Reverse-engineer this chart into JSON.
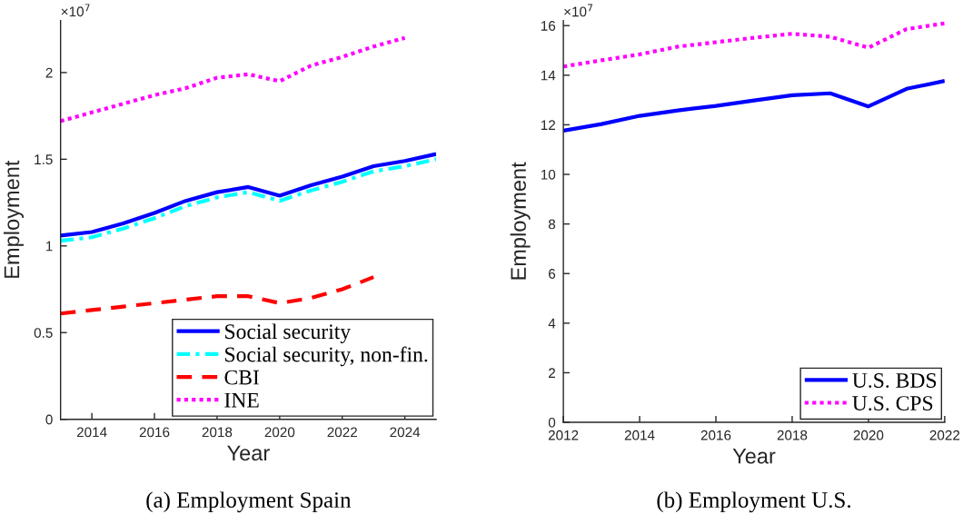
{
  "chart_data": [
    {
      "type": "line",
      "title": "(a) Employment Spain",
      "xlabel": "Year",
      "ylabel": "Employment",
      "annotations": [
        "×10$^{7}$"
      ],
      "x": [
        2013,
        2014,
        2015,
        2016,
        2017,
        2018,
        2019,
        2020,
        2021,
        2022,
        2023,
        2024,
        2025
      ],
      "xlim": [
        2013,
        2025
      ],
      "xticks": [
        2014,
        2016,
        2018,
        2020,
        2022,
        2024
      ],
      "ylim": [
        0,
        2.3
      ],
      "yticks": [
        0,
        0.5,
        1,
        1.5,
        2
      ],
      "legend": "bottom right",
      "series": [
        {
          "name": "Social security",
          "color": "#0000ff",
          "line_style": "solid",
          "values": [
            1.06,
            1.08,
            1.13,
            1.19,
            1.26,
            1.31,
            1.34,
            1.29,
            1.35,
            1.4,
            1.46,
            1.49,
            1.53
          ]
        },
        {
          "name": "Social security, non-fin.",
          "color": "#00ffff",
          "line_style": "dashdot",
          "values": [
            1.03,
            1.05,
            1.1,
            1.16,
            1.23,
            1.28,
            1.31,
            1.26,
            1.32,
            1.37,
            1.43,
            1.46,
            1.5
          ]
        },
        {
          "name": "CBI",
          "color": "#ff0000",
          "line_style": "dashed",
          "values": [
            0.61,
            0.63,
            0.65,
            0.67,
            0.69,
            0.71,
            0.71,
            0.67,
            0.7,
            0.75,
            0.82,
            null,
            null
          ]
        },
        {
          "name": "INE",
          "color": "#ff00ff",
          "line_style": "dotted",
          "values": [
            1.72,
            1.77,
            1.82,
            1.87,
            1.91,
            1.97,
            1.99,
            1.95,
            2.04,
            2.09,
            2.15,
            2.2,
            null
          ]
        }
      ]
    },
    {
      "type": "line",
      "title": "(b) Employment U.S.",
      "xlabel": "Year",
      "ylabel": "Employment",
      "annotations": [
        "×10$^{7}$"
      ],
      "x": [
        2012,
        2013,
        2014,
        2015,
        2016,
        2017,
        2018,
        2019,
        2020,
        2021,
        2022
      ],
      "xlim": [
        2012,
        2022
      ],
      "xticks": [
        2012,
        2014,
        2016,
        2018,
        2020,
        2022
      ],
      "ylim": [
        0,
        16.2
      ],
      "yticks": [
        0,
        2,
        4,
        6,
        8,
        10,
        12,
        14,
        16
      ],
      "legend": "bottom right",
      "series": [
        {
          "name": "U.S. BDS",
          "color": "#0000ff",
          "line_style": "solid",
          "values": [
            11.76,
            12.03,
            12.36,
            12.58,
            12.76,
            12.98,
            13.19,
            13.27,
            12.74,
            13.45,
            13.77
          ]
        },
        {
          "name": "U.S. CPS",
          "color": "#ff00ff",
          "line_style": "dotted",
          "values": [
            14.35,
            14.6,
            14.84,
            15.15,
            15.33,
            15.51,
            15.67,
            15.55,
            15.11,
            15.86,
            16.09
          ]
        }
      ]
    }
  ]
}
